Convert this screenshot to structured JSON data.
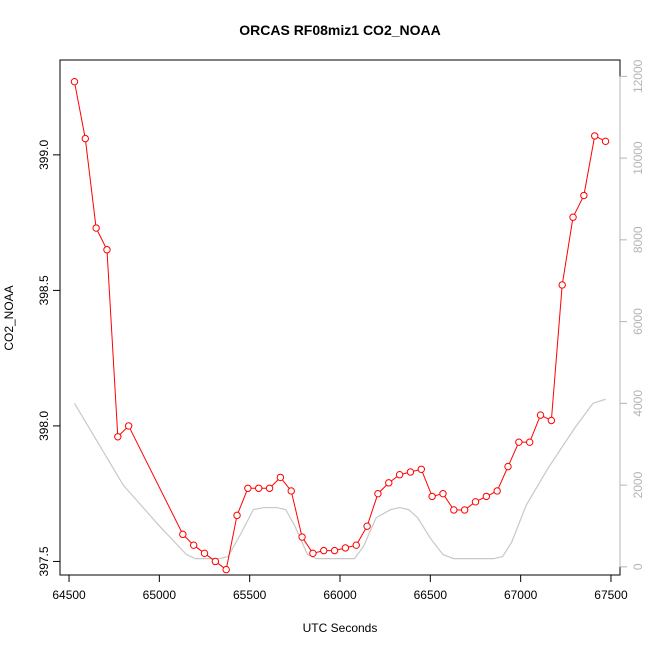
{
  "chart_data": {
    "type": "line",
    "title": "ORCAS RF08miz1 CO2_NOAA",
    "xlabel": "UTC Seconds",
    "ylabel": "CO2_NOAA",
    "xlim": [
      64450,
      67550
    ],
    "ylim": [
      397.45,
      399.35
    ],
    "y2lim": [
      -200,
      12400
    ],
    "x_ticks": [
      64500,
      65000,
      65500,
      66000,
      66500,
      67000,
      67500
    ],
    "y_ticks": [
      397.5,
      398.0,
      398.5,
      399.0
    ],
    "y2_ticks": [
      0,
      2000,
      4000,
      6000,
      8000,
      10000,
      12000
    ],
    "grid": false,
    "colors": {
      "co2": "#ff0000",
      "altitude": "#c8c8c8",
      "axis": "#000000",
      "secondary_axis": "#b4b4b4"
    },
    "series": [
      {
        "axis": "left",
        "style": "line+points",
        "x": [
          64530,
          64590,
          64650,
          64710,
          64770,
          64830,
          65130,
          65190,
          65250,
          65310,
          65370,
          65430,
          65490,
          65550,
          65610,
          65670,
          65730,
          65790,
          65850,
          65910,
          65970,
          66030,
          66090,
          66150,
          66210,
          66270,
          66330,
          66390,
          66450,
          66510,
          66570,
          66630,
          66690,
          66750,
          66810,
          66870,
          66930,
          66990,
          67050,
          67110,
          67170,
          67230,
          67290,
          67350,
          67410,
          67470
        ],
        "values": [
          399.27,
          399.06,
          398.73,
          398.65,
          397.96,
          398.0,
          397.6,
          397.56,
          397.53,
          397.5,
          397.47,
          397.67,
          397.77,
          397.77,
          397.77,
          397.81,
          397.76,
          397.59,
          397.53,
          397.54,
          397.54,
          397.55,
          397.56,
          397.63,
          397.75,
          397.79,
          397.82,
          397.83,
          397.84,
          397.74,
          397.75,
          397.69,
          397.69,
          397.72,
          397.74,
          397.76,
          397.85,
          397.94,
          397.94,
          398.04,
          398.02,
          398.52,
          398.77,
          398.85,
          399.07,
          399.05
        ]
      },
      {
        "axis": "right",
        "style": "line",
        "x": [
          64530,
          64800,
          65000,
          65150,
          65200,
          65330,
          65380,
          65450,
          65520,
          65580,
          65650,
          65700,
          65750,
          65820,
          65870,
          65930,
          66000,
          66080,
          66130,
          66200,
          66280,
          66330,
          66380,
          66430,
          66500,
          66570,
          66630,
          66700,
          66780,
          66850,
          66900,
          66950,
          67030,
          67150,
          67300,
          67400,
          67470
        ],
        "values": [
          4000,
          2000,
          1000,
          300,
          200,
          200,
          250,
          800,
          1400,
          1450,
          1450,
          1400,
          1000,
          300,
          200,
          200,
          200,
          200,
          500,
          1200,
          1400,
          1450,
          1400,
          1200,
          700,
          300,
          200,
          200,
          200,
          200,
          250,
          600,
          1500,
          2400,
          3400,
          4000,
          4100
        ]
      }
    ]
  }
}
